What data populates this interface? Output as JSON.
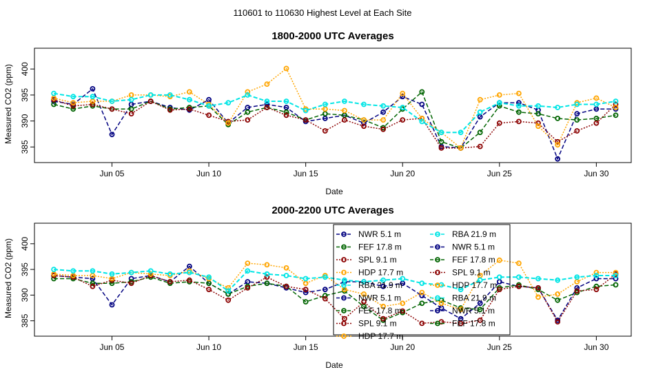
{
  "figure_title": "110601  to  110630 Highest Level at Each Site",
  "colors": {
    "NWR": "#000080",
    "FEF": "#006400",
    "SPL": "#8B0000",
    "HDP": "#FFA500",
    "RBA": "#00E5E5"
  },
  "legend": {
    "entries": [
      {
        "site": "NWR",
        "label": "NWR   5.1 m",
        "lty": "dash"
      },
      {
        "site": "FEF",
        "label": "FEF   17.8 m",
        "lty": "dash"
      },
      {
        "site": "SPL",
        "label": "SPL   9.1 m",
        "lty": "dot"
      },
      {
        "site": "HDP",
        "label": "HDP   17.7 m",
        "lty": "dot"
      },
      {
        "site": "RBA",
        "label": "RBA   21.9 m",
        "lty": "dash"
      },
      {
        "site": "NWR",
        "label": "NWR   5.1 m",
        "lty": "dash"
      },
      {
        "site": "FEF",
        "label": "FEF   17.8 m",
        "lty": "dash"
      },
      {
        "site": "SPL",
        "label": "SPL   9.1 m",
        "lty": "dot"
      },
      {
        "site": "HDP",
        "label": "HDP   17.7 m",
        "lty": "dot"
      },
      {
        "site": "RBA",
        "label": "RBA   21.9 m",
        "lty": "dash"
      },
      {
        "site": "NWR",
        "label": "NWR   5.1 m",
        "lty": "dash"
      },
      {
        "site": "FEF",
        "label": "FEF   17.8 m",
        "lty": "dash"
      },
      {
        "site": "SPL",
        "label": "SPL   9.1 m",
        "lty": "dot"
      },
      {
        "site": "HDP",
        "label": "HDP   17.7 m",
        "lty": "dot"
      },
      {
        "site": "RBA",
        "label": "RBA   21.9 m",
        "lty": "dash"
      },
      {
        "site": "NWR",
        "label": "NWR   5.1 m",
        "lty": "dash"
      },
      {
        "site": "FEF",
        "label": "FEF   17.8 m",
        "lty": "dash"
      }
    ]
  },
  "chart_data": [
    {
      "type": "line",
      "title": "1800-2000 UTC Averages",
      "xlabel": "Date",
      "ylabel": "Measured CO2 (ppm)",
      "xlim": [
        1.0,
        31.8
      ],
      "ylim": [
        382.0,
        404.0
      ],
      "x_ticks": [
        5,
        10,
        15,
        20,
        25,
        30
      ],
      "x_tick_labels": [
        "Jun 05",
        "Jun 10",
        "Jun 15",
        "Jun 20",
        "Jun 25",
        "Jun 30"
      ],
      "y_ticks": [
        385,
        390,
        395,
        400
      ],
      "y_tick_labels": [
        "385",
        "390",
        "395",
        "400"
      ],
      "x": [
        2,
        3,
        4,
        5,
        6,
        7,
        8,
        9,
        10,
        11,
        12,
        13,
        14,
        15,
        16,
        17,
        18,
        19,
        20,
        21,
        22,
        23,
        24,
        25,
        26,
        27,
        28,
        29,
        30,
        31
      ],
      "series": [
        {
          "name": "NWR",
          "values": [
            393.8,
            393.2,
            396.2,
            387.4,
            393.2,
            393.8,
            392.6,
            392.1,
            394.1,
            389.6,
            392.6,
            393.2,
            392.6,
            389.9,
            390.5,
            391.1,
            389.6,
            391.7,
            394.7,
            393.2,
            385.1,
            384.8,
            390.8,
            393.5,
            393.5,
            392.1,
            382.7,
            391.4,
            392.3,
            392.3
          ]
        },
        {
          "name": "FEF",
          "values": [
            393.2,
            392.3,
            392.9,
            392.3,
            392.3,
            393.8,
            392.3,
            392.6,
            392.9,
            389.3,
            391.7,
            392.6,
            391.7,
            390.2,
            391.4,
            391.1,
            390.2,
            388.7,
            392.3,
            395.6,
            386.0,
            384.8,
            387.8,
            392.9,
            391.7,
            391.4,
            390.5,
            390.2,
            390.5,
            391.1
          ]
        },
        {
          "name": "SPL",
          "values": [
            394.1,
            392.9,
            393.2,
            392.3,
            391.4,
            393.8,
            392.1,
            392.3,
            391.1,
            389.9,
            390.2,
            392.6,
            391.1,
            390.2,
            388.1,
            390.2,
            389.0,
            388.4,
            390.2,
            390.5,
            384.8,
            384.8,
            385.1,
            389.6,
            389.9,
            389.6,
            386.0,
            388.1,
            389.6,
            393.2
          ]
        },
        {
          "name": "HDP",
          "values": [
            394.4,
            393.5,
            393.8,
            393.8,
            395.0,
            395.0,
            394.7,
            395.6,
            393.2,
            389.6,
            395.6,
            397.1,
            400.1,
            392.3,
            392.3,
            392.0,
            390.2,
            390.2,
            395.3,
            390.5,
            387.8,
            384.8,
            394.1,
            395.0,
            395.3,
            389.0,
            385.4,
            393.5,
            394.4,
            392.6
          ]
        },
        {
          "name": "RBA",
          "values": [
            395.3,
            394.7,
            394.7,
            393.8,
            394.1,
            395.0,
            395.0,
            394.1,
            392.9,
            393.5,
            395.0,
            393.8,
            393.8,
            392.0,
            393.2,
            393.8,
            393.2,
            392.9,
            392.6,
            389.9,
            387.8,
            387.8,
            391.7,
            393.5,
            392.9,
            392.9,
            392.6,
            393.2,
            393.2,
            393.8
          ]
        }
      ]
    },
    {
      "type": "line",
      "title": "2000-2200 UTC Averages",
      "xlabel": "Date",
      "ylabel": "Measured CO2 (ppm)",
      "xlim": [
        1.0,
        31.8
      ],
      "ylim": [
        382.0,
        404.0
      ],
      "x_ticks": [
        5,
        10,
        15,
        20,
        25,
        30
      ],
      "x_tick_labels": [
        "Jun 05",
        "Jun 10",
        "Jun 15",
        "Jun 20",
        "Jun 25",
        "Jun 30"
      ],
      "y_ticks": [
        385,
        390,
        395,
        400
      ],
      "y_tick_labels": [
        "385",
        "390",
        "395",
        "400"
      ],
      "x": [
        2,
        3,
        4,
        5,
        6,
        7,
        8,
        9,
        10,
        11,
        12,
        13,
        14,
        15,
        16,
        17,
        18,
        19,
        20,
        21,
        22,
        23,
        24,
        25,
        26,
        27,
        28,
        29,
        30,
        31
      ],
      "series": [
        {
          "name": "NWR",
          "values": [
            393.8,
            393.5,
            393.2,
            388.1,
            393.2,
            393.8,
            392.6,
            395.6,
            392.3,
            390.2,
            392.6,
            392.3,
            391.4,
            390.5,
            391.1,
            392.6,
            392.6,
            391.7,
            392.3,
            389.9,
            387.5,
            385.4,
            388.4,
            392.6,
            391.7,
            391.4,
            385.1,
            391.4,
            393.2,
            393.2
          ]
        },
        {
          "name": "FEF",
          "values": [
            393.2,
            393.2,
            392.3,
            392.3,
            392.6,
            393.5,
            392.3,
            392.6,
            392.3,
            390.2,
            391.7,
            392.3,
            391.7,
            388.7,
            389.9,
            390.8,
            387.8,
            385.1,
            386.6,
            388.4,
            389.0,
            387.5,
            387.2,
            391.4,
            392.0,
            391.1,
            389.0,
            390.5,
            391.7,
            392.0
          ]
        },
        {
          "name": "SPL",
          "values": [
            393.8,
            393.5,
            391.7,
            392.9,
            392.3,
            393.8,
            392.6,
            392.9,
            391.1,
            389.0,
            391.4,
            393.5,
            391.7,
            391.1,
            389.3,
            385.4,
            388.7,
            385.4,
            386.9,
            384.5,
            384.8,
            384.5,
            385.1,
            391.1,
            391.7,
            391.4,
            384.8,
            390.8,
            391.1,
            394.1
          ]
        },
        {
          "name": "HDP",
          "values": [
            394.1,
            393.8,
            393.8,
            393.2,
            394.4,
            394.1,
            393.8,
            394.7,
            393.2,
            391.4,
            396.2,
            395.9,
            395.3,
            392.3,
            393.8,
            391.1,
            390.2,
            387.8,
            388.4,
            390.5,
            388.4,
            387.2,
            393.8,
            396.8,
            396.2,
            389.6,
            390.2,
            392.6,
            394.4,
            394.4
          ]
        },
        {
          "name": "RBA",
          "values": [
            395.0,
            394.7,
            394.7,
            394.1,
            394.4,
            394.7,
            394.1,
            394.4,
            393.5,
            390.8,
            394.7,
            394.1,
            393.8,
            393.2,
            393.5,
            392.9,
            392.6,
            392.9,
            393.2,
            392.3,
            392.0,
            391.1,
            392.9,
            393.5,
            393.5,
            393.2,
            392.9,
            393.5,
            393.8,
            393.8
          ]
        }
      ]
    }
  ]
}
